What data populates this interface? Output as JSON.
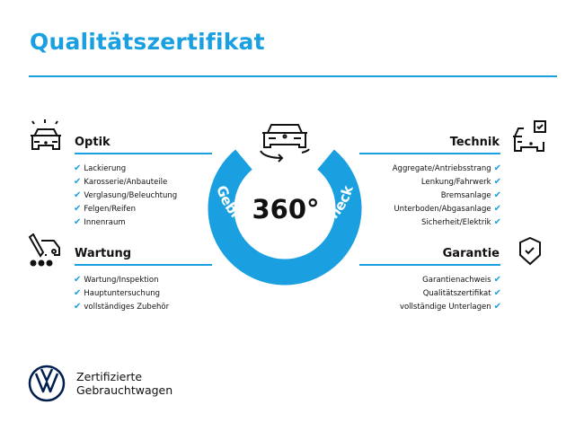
{
  "title": "Qualitätszertifikat",
  "accent_color": "#1aa0e0",
  "badge": {
    "value": "360°",
    "arc_text": "Gebrauchtwagen-Check",
    "icon": "car-rotate-icon"
  },
  "sections": {
    "optik": {
      "title": "Optik",
      "icon": "car-lights-icon",
      "items": [
        "Lackierung",
        "Karosserie/Anbauteile",
        "Verglasung/Beleuchtung",
        "Felgen/Reifen",
        "Innenraum"
      ]
    },
    "wartung": {
      "title": "Wartung",
      "icon": "maintenance-car-icon",
      "items": [
        "Wartung/Inspektion",
        "Hauptuntersuchung",
        "vollständiges Zubehör"
      ]
    },
    "technik": {
      "title": "Technik",
      "icon": "car-checkbox-icon",
      "items": [
        "Aggregate/Antriebsstrang",
        "Lenkung/Fahrwerk",
        "Bremsanlage",
        "Unterboden/Abgasanlage",
        "Sicherheit/Elektrik"
      ]
    },
    "garantie": {
      "title": "Garantie",
      "icon": "shield-check-icon",
      "items": [
        "Garantienachweis",
        "Qualitätszertifikat",
        "vollständige Unterlagen"
      ]
    }
  },
  "check_mark": "✔",
  "brand": {
    "line1": "Zertifizierte",
    "line2": "Gebrauchtwagen",
    "logo": "vw-logo"
  }
}
